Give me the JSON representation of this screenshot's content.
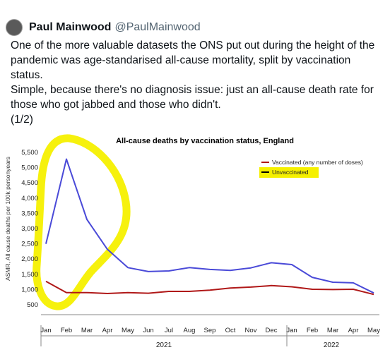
{
  "tweet": {
    "display_name": "Paul Mainwood",
    "handle": "@PaulMainwood",
    "paragraphs": [
      "One of the more valuable datasets the ONS put out during the height of the pandemic was age-standarised all-cause mortality, split by vaccination status.",
      "Simple, because there's no diagnosis issue: just an all-cause death rate for those who got jabbed and those who didn't.",
      "(1/2)"
    ]
  },
  "colors": {
    "vaccinated": "#b01818",
    "unvaccinated": "#4a4ad8",
    "highlight": "#f5f000"
  },
  "chart_data": {
    "type": "line",
    "title": "All-cause deaths by vaccination status, England",
    "ylabel": "ASMR, All cause deaths per 100k personyears",
    "xlabel": "",
    "ylim": [
      400,
      5500
    ],
    "yticks": [
      "5,500",
      "5,000",
      "4,500",
      "4,000",
      "3,500",
      "3,000",
      "2,500",
      "2,000",
      "1,500",
      "1,000",
      "500"
    ],
    "categories": [
      "Jan",
      "Feb",
      "Mar",
      "Apr",
      "May",
      "Jun",
      "Jul",
      "Aug",
      "Sep",
      "Oct",
      "Nov",
      "Dec",
      "Jan",
      "Feb",
      "Mar",
      "Apr",
      "May"
    ],
    "year_labels": [
      {
        "label": "2021",
        "start": 0,
        "end": 11
      },
      {
        "label": "2022",
        "start": 12,
        "end": 16
      }
    ],
    "legend_position": "top-right",
    "series": [
      {
        "name": "Vaccinated (any number of doses)",
        "color": "#b01818",
        "values": [
          1270,
          900,
          900,
          870,
          900,
          880,
          940,
          940,
          980,
          1050,
          1080,
          1130,
          1090,
          1010,
          1000,
          1010,
          840
        ]
      },
      {
        "name": "Unvaccinated",
        "color": "#4a4ad8",
        "values": [
          2500,
          5280,
          3300,
          2320,
          1720,
          1590,
          1610,
          1720,
          1660,
          1630,
          1710,
          1880,
          1820,
          1400,
          1240,
          1220,
          890
        ]
      }
    ]
  }
}
